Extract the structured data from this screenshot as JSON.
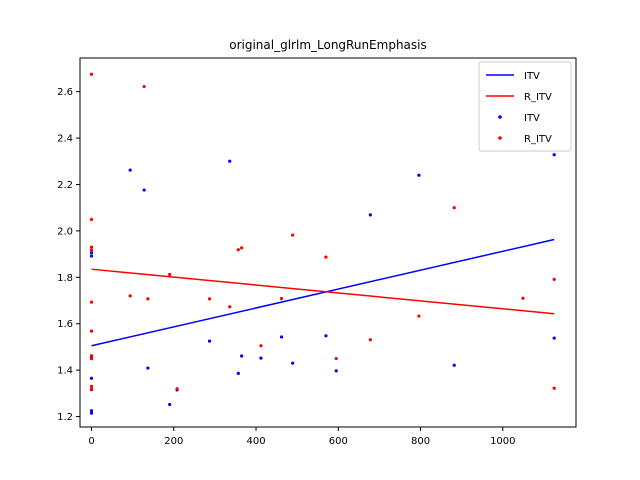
{
  "chart_data": {
    "type": "scatter",
    "title": "original_glrlm_LongRunEmphasis",
    "xlabel": "",
    "ylabel": "",
    "xlim": [
      -28,
      1178
    ],
    "ylim": [
      1.155,
      2.745
    ],
    "x_ticks": [
      0,
      200,
      400,
      600,
      800,
      1000
    ],
    "x_tick_labels": [
      "0",
      "200",
      "400",
      "600",
      "800",
      "1000"
    ],
    "y_ticks": [
      1.2,
      1.4,
      1.6,
      1.8,
      2.0,
      2.2,
      2.4,
      2.6
    ],
    "y_tick_labels": [
      "1.2",
      "1.4",
      "1.6",
      "1.8",
      "2.0",
      "2.2",
      "2.4",
      "2.6"
    ],
    "grid": false,
    "legend_position": "upper right",
    "legend": [
      {
        "label": "ITV",
        "kind": "line",
        "color": "#0000ff"
      },
      {
        "label": "R_ITV",
        "kind": "line",
        "color": "#ff0000"
      },
      {
        "label": "ITV",
        "kind": "point",
        "color": "#0000ff"
      },
      {
        "label": "R_ITV",
        "kind": "point",
        "color": "#ff0000"
      }
    ],
    "fit_lines": [
      {
        "name": "ITV",
        "color": "#0000ff",
        "x": [
          0,
          1125
        ],
        "y": [
          1.505,
          1.963
        ]
      },
      {
        "name": "R_ITV",
        "color": "#ff0000",
        "x": [
          0,
          1125
        ],
        "y": [
          1.835,
          1.643
        ]
      }
    ],
    "series": [
      {
        "name": "ITV",
        "color": "#0000ff",
        "points": [
          [
            0,
            1.906
          ],
          [
            0,
            1.892
          ],
          [
            0,
            1.456
          ],
          [
            0,
            1.365
          ],
          [
            0,
            1.316
          ],
          [
            0,
            1.225
          ],
          [
            0,
            1.215
          ],
          [
            94,
            2.262
          ],
          [
            128,
            2.176
          ],
          [
            137,
            1.409
          ],
          [
            190,
            1.252
          ],
          [
            208,
            1.315
          ],
          [
            287,
            1.525
          ],
          [
            336,
            2.3
          ],
          [
            357,
            1.386
          ],
          [
            365,
            1.461
          ],
          [
            412,
            1.452
          ],
          [
            462,
            1.543
          ],
          [
            489,
            1.43
          ],
          [
            570,
            1.548
          ],
          [
            595,
            1.397
          ],
          [
            678,
            2.069
          ],
          [
            796,
            2.24
          ],
          [
            882,
            1.421
          ],
          [
            1125,
            2.328
          ],
          [
            1125,
            1.538
          ]
        ]
      },
      {
        "name": "R_ITV",
        "color": "#ff0000",
        "points": [
          [
            0,
            2.675
          ],
          [
            0,
            2.049
          ],
          [
            0,
            1.93
          ],
          [
            0,
            1.917
          ],
          [
            0,
            1.693
          ],
          [
            0,
            1.568
          ],
          [
            0,
            1.462
          ],
          [
            0,
            1.449
          ],
          [
            0,
            1.33
          ],
          [
            0,
            1.319
          ],
          [
            94,
            1.72
          ],
          [
            128,
            2.622
          ],
          [
            137,
            1.707
          ],
          [
            190,
            1.812
          ],
          [
            208,
            1.32
          ],
          [
            287,
            1.707
          ],
          [
            336,
            1.673
          ],
          [
            357,
            1.919
          ],
          [
            365,
            1.927
          ],
          [
            412,
            1.505
          ],
          [
            462,
            1.708
          ],
          [
            489,
            1.982
          ],
          [
            570,
            1.887
          ],
          [
            595,
            1.45
          ],
          [
            678,
            1.531
          ],
          [
            796,
            1.633
          ],
          [
            882,
            2.1
          ],
          [
            1049,
            1.71
          ],
          [
            1125,
            1.791
          ],
          [
            1125,
            1.322
          ]
        ]
      }
    ]
  }
}
